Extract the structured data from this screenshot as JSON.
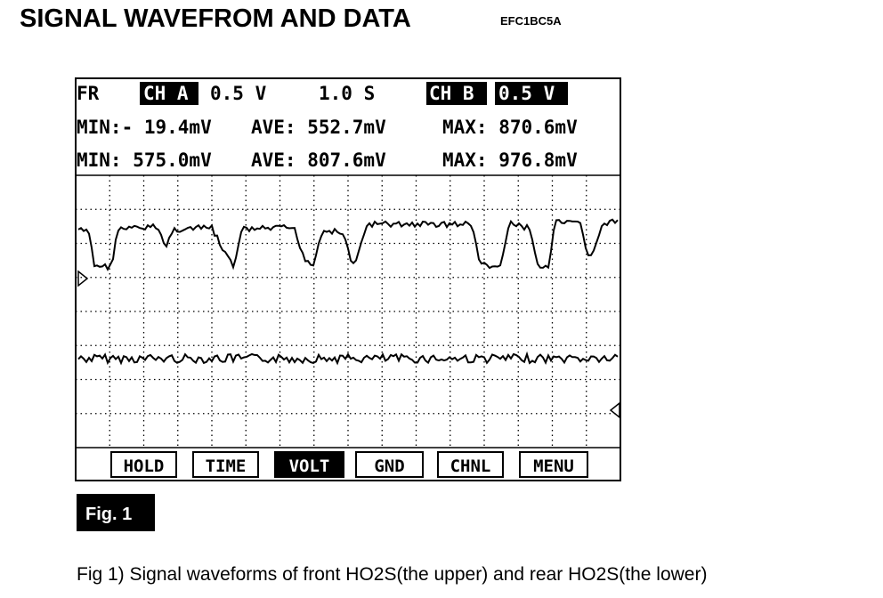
{
  "header": {
    "title": "SIGNAL WAVEFROM AND DATA",
    "code": "EFC1BC5A"
  },
  "screen": {
    "status": {
      "mode": "FR",
      "channel_a": "CH A",
      "volt_a": "0.5 V",
      "time": "1.0 S",
      "channel_b": "CH B",
      "volt_b": "0.5 V"
    },
    "rows": [
      [
        "MIN:- 19.4mV",
        "AVE: 552.7mV",
        "MAX: 870.6mV"
      ],
      [
        "MIN: 575.0mV",
        "AVE: 807.6mV",
        "MAX: 976.8mV"
      ]
    ],
    "buttons": [
      "HOLD",
      "TIME",
      "VOLT",
      "GND",
      "CHNL",
      "MENU"
    ]
  },
  "figure": {
    "label": "Fig. 1",
    "caption": "Fig 1) Signal waveforms of front HO2S(the upper) and rear HO2S(the lower)"
  }
}
